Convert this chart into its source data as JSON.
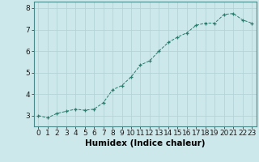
{
  "x": [
    0,
    1,
    2,
    3,
    4,
    5,
    6,
    7,
    8,
    9,
    10,
    11,
    12,
    13,
    14,
    15,
    16,
    17,
    18,
    19,
    20,
    21,
    22,
    23
  ],
  "y": [
    3.0,
    2.9,
    3.1,
    3.2,
    3.3,
    3.25,
    3.3,
    3.6,
    4.2,
    4.4,
    4.8,
    5.35,
    5.55,
    6.0,
    6.4,
    6.65,
    6.85,
    7.2,
    7.3,
    7.3,
    7.7,
    7.75,
    7.45,
    7.3
  ],
  "line_color": "#2a7d6e",
  "marker": "+",
  "marker_color": "#2a7d6e",
  "bg_color": "#cce8ea",
  "grid_color": "#b0d0d4",
  "xlabel": "Humidex (Indice chaleur)",
  "xlabel_fontsize": 7.5,
  "tick_fontsize": 6.5,
  "xlim": [
    -0.5,
    23.5
  ],
  "ylim": [
    2.5,
    8.3
  ],
  "yticks": [
    3,
    4,
    5,
    6,
    7,
    8
  ],
  "xticks": [
    0,
    1,
    2,
    3,
    4,
    5,
    6,
    7,
    8,
    9,
    10,
    11,
    12,
    13,
    14,
    15,
    16,
    17,
    18,
    19,
    20,
    21,
    22,
    23
  ]
}
